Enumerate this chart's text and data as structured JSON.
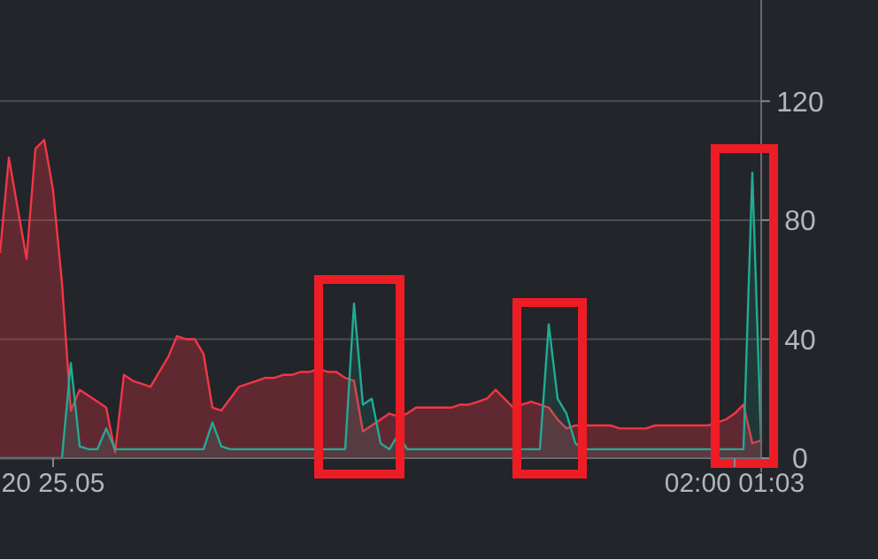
{
  "chart_data": {
    "type": "area",
    "categories": [
      null,
      null,
      null,
      null,
      null,
      null,
      "20 25.05",
      null,
      null,
      null,
      null,
      null,
      null,
      null,
      null,
      null,
      null,
      null,
      null,
      null,
      null,
      null,
      null,
      null,
      null,
      null,
      null,
      null,
      null,
      null,
      null,
      null,
      null,
      null,
      null,
      null,
      null,
      null,
      null,
      null,
      null,
      null,
      null,
      null,
      null,
      null,
      null,
      null,
      null,
      null,
      null,
      null,
      null,
      null,
      null,
      null,
      null,
      null,
      null,
      null,
      null,
      null,
      null,
      null,
      null,
      null,
      null,
      null,
      null,
      null,
      null,
      null,
      null,
      null,
      null,
      null,
      null,
      null,
      null,
      null,
      null,
      null,
      null,
      "02:00 01:03",
      null,
      null,
      null
    ],
    "ylim": [
      0,
      154
    ],
    "yticks": [
      0,
      40,
      80,
      120
    ],
    "grid": "y",
    "series": [
      {
        "color": "#f23645",
        "values": [
          69,
          101,
          84,
          67,
          104,
          107,
          90,
          59,
          16,
          23,
          21,
          19,
          17,
          2,
          28,
          26,
          25,
          24,
          29,
          34,
          41,
          40,
          40,
          35,
          17,
          16,
          20,
          24,
          25,
          26,
          27,
          27,
          28,
          28,
          29,
          29,
          30,
          29,
          29,
          27,
          26,
          9,
          11,
          13,
          15,
          14,
          15,
          17,
          17,
          17,
          17,
          17,
          18,
          18,
          19,
          20,
          23,
          20,
          17,
          18,
          19,
          18,
          17,
          13,
          10,
          11,
          11,
          11,
          11,
          11,
          10,
          10,
          10,
          10,
          11,
          11,
          11,
          11,
          11,
          11,
          11,
          12,
          13,
          15,
          18,
          5,
          6
        ]
      },
      {
        "color": "#22ab94",
        "values": [
          0,
          0,
          0,
          0,
          0,
          0,
          0,
          0,
          32,
          4,
          3,
          3,
          10,
          3,
          3,
          3,
          3,
          3,
          3,
          3,
          3,
          3,
          3,
          3,
          12,
          4,
          3,
          3,
          3,
          3,
          3,
          3,
          3,
          3,
          3,
          3,
          3,
          3,
          3,
          3,
          52,
          18,
          20,
          5,
          3,
          8,
          3,
          3,
          3,
          3,
          3,
          3,
          3,
          3,
          3,
          3,
          3,
          3,
          3,
          3,
          3,
          3,
          45,
          20,
          15,
          5,
          3,
          3,
          3,
          3,
          3,
          3,
          3,
          3,
          3,
          3,
          3,
          3,
          3,
          3,
          3,
          3,
          3,
          3,
          3,
          96,
          5
        ]
      }
    ]
  }
}
